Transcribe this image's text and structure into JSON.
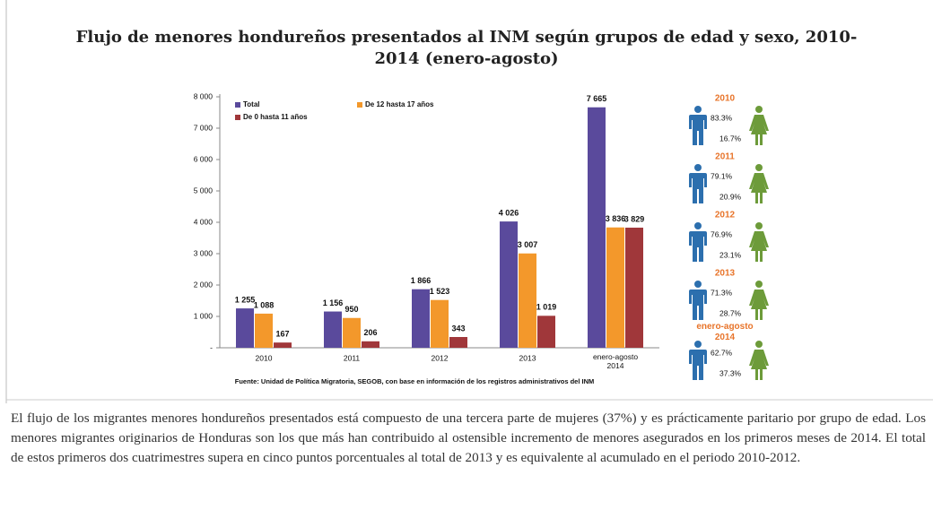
{
  "chart_data": {
    "type": "bar",
    "title": "Flujo de menores hondureños presentados al INM según grupos de edad y sexo, 2010-2014 (enero-agosto)",
    "categories": [
      "2010",
      "2011",
      "2012",
      "2013",
      "enero-agosto 2014"
    ],
    "series": [
      {
        "name": "Total",
        "color": "#5a4a9c",
        "values": [
          1255,
          1156,
          1866,
          4026,
          7665
        ],
        "value_labels": [
          "1 255",
          "1 156",
          "1 866",
          "4 026",
          "7 665"
        ]
      },
      {
        "name": "De 12 hasta 17 años",
        "color": "#f3982b",
        "values": [
          1088,
          950,
          1523,
          3007,
          3836
        ],
        "value_labels": [
          "1 088",
          "950",
          "1 523",
          "3 007",
          "3 836"
        ]
      },
      {
        "name": "De 0 hasta 11 años",
        "color": "#a0373a",
        "values": [
          167,
          206,
          343,
          1019,
          3829
        ],
        "value_labels": [
          "167",
          "206",
          "343",
          "1 019",
          "3 829"
        ]
      }
    ],
    "ylim": [
      0,
      8000
    ],
    "yticks": [
      {
        "value": 0,
        "label": "-"
      },
      {
        "value": 1000,
        "label": "1 000"
      },
      {
        "value": 2000,
        "label": "2 000"
      },
      {
        "value": 3000,
        "label": "3 000"
      },
      {
        "value": 4000,
        "label": "4 000"
      },
      {
        "value": 5000,
        "label": "5 000"
      },
      {
        "value": 6000,
        "label": "6 000"
      },
      {
        "value": 7000,
        "label": "7 000"
      },
      {
        "value": 8000,
        "label": "8 000"
      }
    ],
    "grid": false,
    "source": "Fuente: Unidad de Política Migratoria, SEGOB, con base en información de los registros administrativos del INM"
  },
  "gender": [
    {
      "year": "2010",
      "male": "83.3%",
      "female": "16.7%"
    },
    {
      "year": "2011",
      "male": "79.1%",
      "female": "20.9%"
    },
    {
      "year": "2012",
      "male": "76.9%",
      "female": "23.1%"
    },
    {
      "year": "2013",
      "male": "71.3%",
      "female": "28.7%"
    },
    {
      "year": "enero-agosto 2014",
      "male": "62.7%",
      "female": "37.3%"
    }
  ],
  "paragraph": "El flujo de los migrantes menores hondureños presentados está compuesto de una tercera parte de mujeres (37%) y es prácticamente paritario por grupo de edad. Los menores migrantes originarios de Honduras son los que más han contribuido al ostensible incremento de menores asegurados en los primeros meses de 2014. El total de estos primeros dos cuatrimestres supera en cinco puntos porcentuales al total de 2013 y es equivalente al acumulado en el periodo 2010-2012."
}
